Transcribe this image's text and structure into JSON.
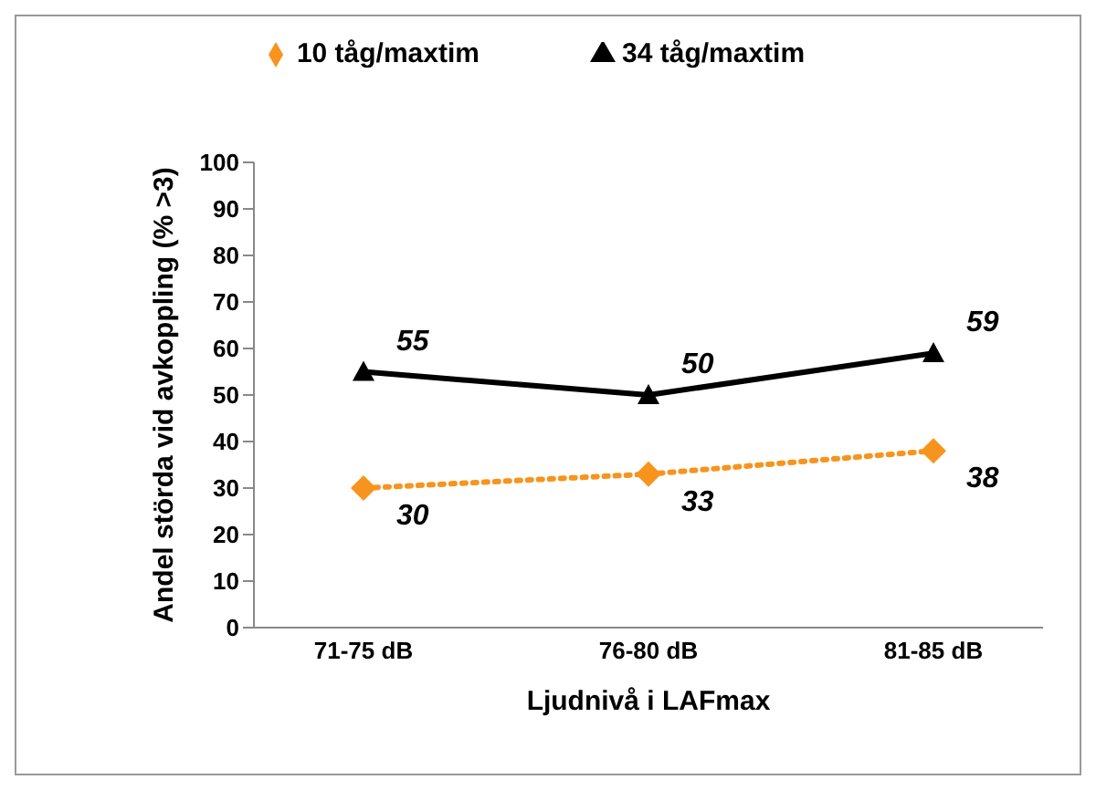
{
  "chart_data": {
    "type": "line",
    "xlabel": "Ljudnivå i LAFmax",
    "ylabel": "Andel störda vid avkoppling (% >3)",
    "categories": [
      "71-75 dB",
      "76-80 dB",
      "81-85 dB"
    ],
    "series": [
      {
        "name": "10 tåg/maxtim",
        "color": "#f7941d",
        "values": [
          30,
          33,
          38
        ],
        "marker": "diamond",
        "line_style": "dotted"
      },
      {
        "name": "34 tåg/maxtim",
        "color": "#000000",
        "values": [
          55,
          50,
          59
        ],
        "marker": "triangle",
        "line_style": "solid"
      }
    ],
    "ylim": [
      0,
      100
    ],
    "yticks": [
      0,
      10,
      20,
      30,
      40,
      50,
      60,
      70,
      80,
      90,
      100
    ],
    "grid": false,
    "legend": "top",
    "data_labels": true
  }
}
